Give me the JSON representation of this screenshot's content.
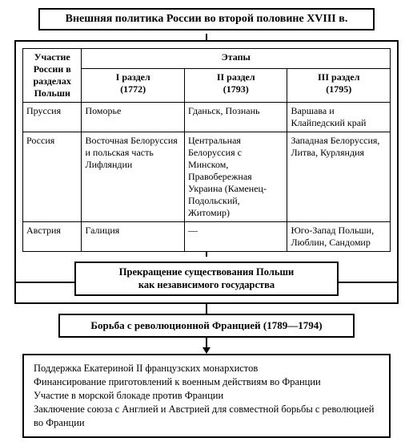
{
  "title": "Внешняя политика России во второй половине XVIII в.",
  "table": {
    "corner": "Участие России в разделах Польши",
    "stages_header": "Этапы",
    "stages": [
      {
        "label": "I раздел",
        "year": "(1772)"
      },
      {
        "label": "II раздел",
        "year": "(1793)"
      },
      {
        "label": "III раздел",
        "year": "(1795)"
      }
    ],
    "rows": [
      {
        "country": "Пруссия",
        "c1": "Поморье",
        "c2": "Гданьск, Познань",
        "c3": "Варшава и Клайпедский край"
      },
      {
        "country": "Россия",
        "c1": "Восточная Белоруссия и польская часть Лифляндии",
        "c2": "Центральная Белоруссия с Минском, Правобережная Украина (Каменец-Подольский, Житомир)",
        "c3": "Западная Белоруссия, Литва, Курляндия"
      },
      {
        "country": "Австрия",
        "c1": "Галиция",
        "c2": "—",
        "c3": "Юго-Запад Польши, Люблин, Сандомир"
      }
    ]
  },
  "result": {
    "line1": "Прекращение существования Польши",
    "line2": "как независимого государства"
  },
  "france_title": "Борьба с революционной Францией (1789—1794)",
  "france_points": {
    "p1": "Поддержка Екатериной II французских монархистов",
    "p2": "Финансирование приготовлений к военным действиям во Франции",
    "p3": "Участие в морской блокаде против Франции",
    "p4": "Заключение союза с Англией и Австрией для совместной борьбы с революцией во Франции"
  },
  "colors": {
    "border": "#000000",
    "bg": "#ffffff"
  }
}
